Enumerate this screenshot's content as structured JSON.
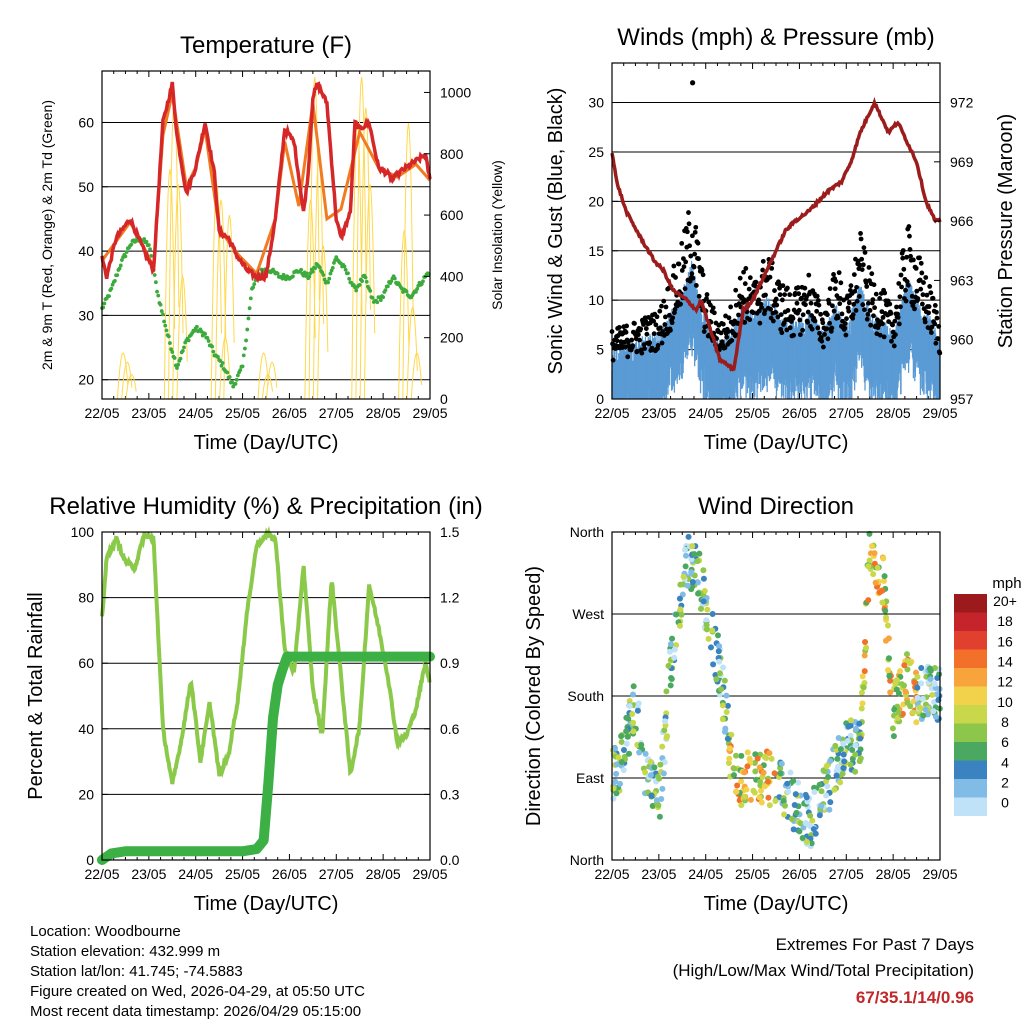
{
  "time_ticks": [
    "22/05",
    "23/05",
    "24/05",
    "25/05",
    "26/05",
    "27/05",
    "28/05",
    "29/05"
  ],
  "colors": {
    "red": "#d62728",
    "orange": "#f07b21",
    "green": "#3caa3c",
    "yellow": "#ffd84a",
    "sonic": "#5b9bd5",
    "gust": "#000000",
    "pressure": "#9b1c1c",
    "rh": "#8bc94a",
    "rain": "#3cb044"
  },
  "footer": {
    "location": "Location: Woodbourne",
    "elevation": "Station elevation: 432.999 m",
    "latlon": "Station lat/lon: 41.745; -74.5883",
    "created": "Figure created on Wed, 2026-04-29, at 05:50 UTC",
    "recent": "Most recent data timestamp: 2026/04/29 05:15:00"
  },
  "extremes": {
    "title": "Extremes For Past 7 Days",
    "subtitle": "(High/Low/Max Wind/Total Precipitation)",
    "values": "67/35.1/14/0.96"
  },
  "chart_data": [
    {
      "type": "line",
      "title": "Temperature (F)",
      "xlabel": "Time (Day/UTC)",
      "ylabel": "2m & 9m T (Red, Orange) & 2m Td (Green)",
      "ylabel_right": "Solar Insolation (Yellow)",
      "x_range_days": [
        0,
        7
      ],
      "ylim": [
        17,
        68
      ],
      "yticks": [
        20,
        30,
        40,
        50,
        60
      ],
      "ylim_right": [
        0,
        1070
      ],
      "yticks_right": [
        0,
        200,
        400,
        600,
        800,
        1000
      ],
      "series": [
        {
          "name": "2m T",
          "color": "red",
          "x": [
            0,
            0.1,
            0.3,
            0.6,
            0.9,
            1.1,
            1.3,
            1.5,
            1.6,
            1.8,
            2.0,
            2.2,
            2.4,
            2.5,
            2.7,
            2.9,
            3.1,
            3.3,
            3.5,
            3.7,
            3.9,
            4.1,
            4.3,
            4.4,
            4.5,
            4.6,
            4.8,
            5.0,
            5.1,
            5.3,
            5.4,
            5.5,
            5.7,
            5.9,
            6.1,
            6.2,
            6.3,
            6.5,
            6.7,
            6.9,
            7.0
          ],
          "y": [
            39,
            36,
            42,
            45,
            40,
            37,
            60,
            66,
            58,
            49,
            53,
            60,
            52,
            43,
            42,
            39,
            37,
            36,
            36,
            45,
            59,
            57,
            46,
            52,
            64,
            66,
            63,
            45,
            42,
            46,
            60,
            59,
            60,
            53,
            52,
            51,
            52,
            53,
            54,
            55,
            51
          ]
        },
        {
          "name": "9m T",
          "color": "orange",
          "x": [
            0,
            0.3,
            0.6,
            0.9,
            1.1,
            1.3,
            1.5,
            1.8,
            2.0,
            2.2,
            2.5,
            2.9,
            3.3,
            3.7,
            3.9,
            4.2,
            4.5,
            4.8,
            5.1,
            5.5,
            5.9,
            6.3,
            6.7,
            7.0
          ],
          "y": [
            38.5,
            41.5,
            44.5,
            40.5,
            37.5,
            58,
            64.5,
            50,
            53,
            59,
            43.5,
            39.5,
            36.5,
            45,
            57,
            47,
            63,
            45,
            46.5,
            58.5,
            53,
            51.5,
            53.5,
            51
          ]
        },
        {
          "name": "2m Td",
          "color": "green",
          "x": [
            0,
            0.2,
            0.4,
            0.6,
            0.8,
            1.0,
            1.2,
            1.4,
            1.6,
            1.8,
            2.0,
            2.2,
            2.4,
            2.6,
            2.8,
            3.0,
            3.2,
            3.4,
            3.6,
            3.8,
            4.0,
            4.2,
            4.4,
            4.6,
            4.8,
            5.0,
            5.2,
            5.4,
            5.6,
            5.8,
            6.0,
            6.2,
            6.4,
            6.6,
            6.8,
            7.0
          ],
          "y": [
            31,
            34,
            38,
            41,
            42,
            41,
            33,
            27,
            22,
            26,
            28,
            27,
            24,
            22,
            19,
            22,
            34,
            37,
            37,
            36,
            36,
            37,
            36,
            38,
            35,
            39,
            37,
            34,
            36,
            32,
            33,
            36,
            34,
            33,
            35,
            37
          ]
        },
        {
          "name": "Solar Insolation",
          "color": "yellow",
          "axis": "right",
          "days": [
            0,
            1,
            2,
            3,
            4,
            5,
            6
          ],
          "peaks": [
            [
              150,
              120,
              80
            ],
            [
              750,
              980,
              700,
              400
            ],
            [
              700,
              650,
              200,
              600
            ],
            [
              150,
              80,
              120
            ],
            [
              650,
              1050,
              800,
              500
            ],
            [
              900,
              1050,
              950,
              700
            ],
            [
              550,
              900,
              300,
              150
            ]
          ]
        }
      ]
    },
    {
      "type": "scatter+line",
      "title": "Winds (mph) & Pressure (mb)",
      "xlabel": "Time (Day/UTC)",
      "ylabel": "Sonic Wind & Gust (Blue, Black)",
      "ylabel_right": "Station Pressure (Maroon)",
      "x_range_days": [
        0,
        7
      ],
      "ylim": [
        0,
        34
      ],
      "yticks": [
        0,
        5,
        10,
        15,
        20,
        25,
        30
      ],
      "ylim_right": [
        957,
        974
      ],
      "yticks_right": [
        957,
        960,
        963,
        966,
        969,
        972
      ],
      "gust_envelope": {
        "x": [
          0,
          0.5,
          1.0,
          1.5,
          1.7,
          2.0,
          2.3,
          2.5,
          2.8,
          3.0,
          3.3,
          3.6,
          3.9,
          4.2,
          4.5,
          4.8,
          5.0,
          5.3,
          5.5,
          5.8,
          6.0,
          6.3,
          6.6,
          6.9,
          7.0
        ],
        "y": [
          7,
          8,
          9,
          16,
          21,
          11,
          8,
          9,
          14,
          12,
          15,
          12,
          11,
          13,
          9,
          14,
          10,
          17,
          13,
          11,
          9,
          18,
          14,
          10,
          8
        ]
      },
      "max_gust_point": {
        "x": 1.72,
        "y": 32
      },
      "pressure": {
        "x": [
          0,
          0.1,
          0.3,
          0.6,
          0.9,
          1.1,
          1.3,
          1.6,
          1.8,
          1.9,
          2.1,
          2.3,
          2.6,
          2.8,
          3.0,
          3.3,
          3.5,
          3.7,
          3.9,
          4.2,
          4.4,
          4.6,
          4.9,
          5.1,
          5.3,
          5.6,
          5.8,
          5.9,
          6.1,
          6.3,
          6.5,
          6.7,
          6.9,
          7.0
        ],
        "y": [
          969.5,
          968,
          966.5,
          965.2,
          964,
          963.5,
          962.5,
          962,
          961.5,
          962,
          960.5,
          959,
          958.5,
          961.5,
          962,
          963.5,
          964.5,
          965.5,
          966,
          966.5,
          967,
          967.5,
          968,
          969,
          970.5,
          972,
          971,
          970.5,
          971,
          970,
          969,
          967,
          966,
          966
        ]
      }
    },
    {
      "type": "line",
      "title": "Relative Humidity (%) & Precipitation (in)",
      "xlabel": "Time (Day/UTC)",
      "ylabel": "Percent & Total Rainfall",
      "x_range_days": [
        0,
        7
      ],
      "ylim": [
        0,
        100
      ],
      "yticks": [
        0,
        20,
        40,
        60,
        80,
        100
      ],
      "ylim_right": [
        0,
        1.5
      ],
      "yticks_right": [
        "0.0",
        "0.3",
        "0.6",
        "0.9",
        "1.2",
        "1.5"
      ],
      "series": [
        {
          "name": "RH",
          "color": "rh",
          "x": [
            0,
            0.1,
            0.3,
            0.5,
            0.7,
            0.9,
            1.1,
            1.3,
            1.5,
            1.7,
            1.9,
            2.1,
            2.3,
            2.5,
            2.7,
            2.9,
            3.1,
            3.3,
            3.5,
            3.7,
            3.9,
            4.1,
            4.3,
            4.5,
            4.7,
            4.9,
            5.1,
            5.3,
            5.5,
            5.7,
            5.9,
            6.1,
            6.3,
            6.5,
            6.7,
            6.9,
            7.0
          ],
          "y": [
            74,
            92,
            98,
            91,
            89,
            99,
            98,
            40,
            23,
            37,
            55,
            30,
            48,
            26,
            32,
            49,
            76,
            96,
            99,
            98,
            64,
            57,
            90,
            52,
            38,
            86,
            56,
            26,
            41,
            84,
            71,
            56,
            36,
            38,
            46,
            60,
            54
          ]
        },
        {
          "name": "Total Precipitation",
          "color": "rain",
          "x": [
            0,
            0.2,
            0.5,
            1.0,
            1.5,
            2.0,
            2.5,
            3.0,
            3.3,
            3.45,
            3.55,
            3.65,
            3.75,
            3.85,
            3.95,
            4.1,
            5.0,
            6.0,
            7.0
          ],
          "y": [
            0,
            0.03,
            0.04,
            0.04,
            0.04,
            0.04,
            0.04,
            0.04,
            0.05,
            0.09,
            0.35,
            0.65,
            0.8,
            0.87,
            0.93,
            0.93,
            0.93,
            0.93,
            0.93
          ]
        }
      ]
    },
    {
      "type": "scatter",
      "title": "Wind Direction",
      "xlabel": "Time (Day/UTC)",
      "ylabel": "Direction (Colored By Speed)",
      "x_range_days": [
        0,
        7
      ],
      "ylim": [
        0,
        360
      ],
      "yticks": [
        "North",
        "East",
        "South",
        "West",
        "North"
      ],
      "direction_track": {
        "x": [
          0,
          0.2,
          0.5,
          0.7,
          1.0,
          1.3,
          1.6,
          1.8,
          2.0,
          2.3,
          2.6,
          3.0,
          3.3,
          3.6,
          3.9,
          4.2,
          4.6,
          5.0,
          5.3,
          5.5,
          5.8,
          6.0,
          6.3,
          6.5,
          6.8,
          7.0
        ],
        "y": [
          90,
          110,
          170,
          100,
          60,
          240,
          330,
          320,
          280,
          210,
          90,
          90,
          90,
          80,
          60,
          40,
          80,
          130,
          120,
          350,
          300,
          160,
          200,
          180,
          190,
          180
        ]
      },
      "colorbar_title": "mph",
      "colorbar_labels": [
        "20+",
        "18",
        "16",
        "14",
        "12",
        "10",
        "8",
        "6",
        "4",
        "2",
        "0"
      ],
      "colorbar_colors": [
        "#9c1a1c",
        "#c4242a",
        "#e2402e",
        "#f2702a",
        "#f8a43c",
        "#f2d24a",
        "#c8d84a",
        "#8cc64a",
        "#4aa860",
        "#3a82c0",
        "#80bce6",
        "#c0e2f8"
      ]
    }
  ]
}
